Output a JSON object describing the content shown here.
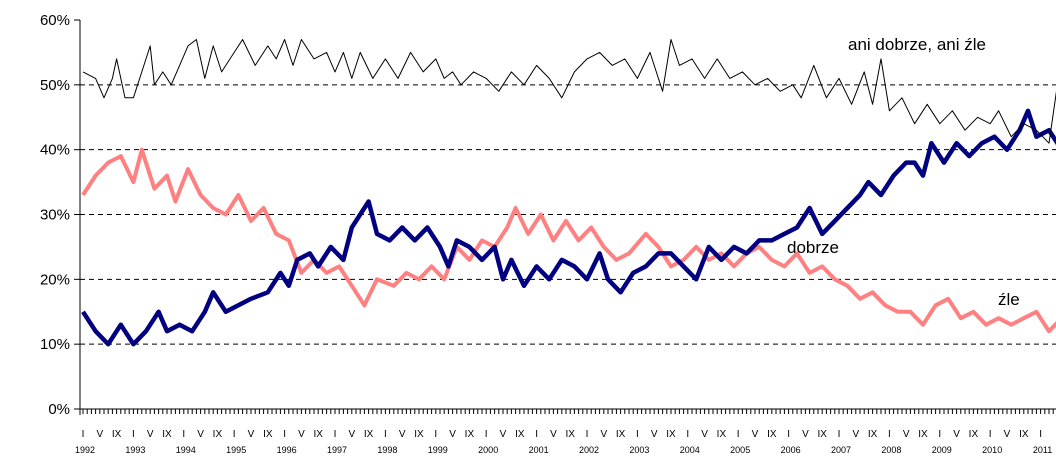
{
  "chart_data": {
    "type": "line",
    "title": "",
    "xlabel": "",
    "ylabel": "",
    "ylim": [
      0,
      60
    ],
    "y_ticks": [
      0,
      10,
      20,
      30,
      40,
      50,
      60
    ],
    "y_tick_labels": [
      "0%",
      "10%",
      "20%",
      "30%",
      "40%",
      "50%",
      "60%"
    ],
    "grid": "horizontal dashed at 10–50%",
    "x_range": [
      "1992-01",
      "2011-12"
    ],
    "x_month_tick_labels": [
      "I",
      "V",
      "IX"
    ],
    "x_year_labels": [
      "1992",
      "1993",
      "1994",
      "1995",
      "1996",
      "1997",
      "1998",
      "1999",
      "2000",
      "2001",
      "2002",
      "2003",
      "2004",
      "2005",
      "2006",
      "2007",
      "2008",
      "2009",
      "2010",
      "2011"
    ],
    "series": [
      {
        "name": "ani dobrze, ani źle",
        "color": "#000000",
        "points": [
          [
            "1992-01",
            52
          ],
          [
            "1992-04",
            51
          ],
          [
            "1992-06",
            48
          ],
          [
            "1992-08",
            51
          ],
          [
            "1992-09",
            54
          ],
          [
            "1992-11",
            48
          ],
          [
            "1993-01",
            48
          ],
          [
            "1993-03",
            52
          ],
          [
            "1993-05",
            56
          ],
          [
            "1993-06",
            50
          ],
          [
            "1993-08",
            52
          ],
          [
            "1993-10",
            50
          ],
          [
            "1993-12",
            53
          ],
          [
            "1994-02",
            56
          ],
          [
            "1994-04",
            57
          ],
          [
            "1994-06",
            51
          ],
          [
            "1994-08",
            56
          ],
          [
            "1994-10",
            52
          ],
          [
            "1994-12",
            54
          ],
          [
            "1995-03",
            57
          ],
          [
            "1995-06",
            53
          ],
          [
            "1995-09",
            56
          ],
          [
            "1995-11",
            54
          ],
          [
            "1996-01",
            57
          ],
          [
            "1996-03",
            53
          ],
          [
            "1996-05",
            57
          ],
          [
            "1996-08",
            54
          ],
          [
            "1996-11",
            55
          ],
          [
            "1997-01",
            52
          ],
          [
            "1997-03",
            55
          ],
          [
            "1997-05",
            51
          ],
          [
            "1997-07",
            55
          ],
          [
            "1997-10",
            51
          ],
          [
            "1998-01",
            54
          ],
          [
            "1998-04",
            51
          ],
          [
            "1998-07",
            55
          ],
          [
            "1998-10",
            52
          ],
          [
            "1999-01",
            54
          ],
          [
            "1999-03",
            51
          ],
          [
            "1999-05",
            52
          ],
          [
            "1999-07",
            50
          ],
          [
            "1999-10",
            52
          ],
          [
            "2000-01",
            51
          ],
          [
            "2000-04",
            49
          ],
          [
            "2000-07",
            52
          ],
          [
            "2000-10",
            50
          ],
          [
            "2001-01",
            53
          ],
          [
            "2001-04",
            51
          ],
          [
            "2001-07",
            48
          ],
          [
            "2001-10",
            52
          ],
          [
            "2002-01",
            54
          ],
          [
            "2002-04",
            55
          ],
          [
            "2002-07",
            53
          ],
          [
            "2002-10",
            54
          ],
          [
            "2003-01",
            51
          ],
          [
            "2003-04",
            55
          ],
          [
            "2003-07",
            49
          ],
          [
            "2003-09",
            57
          ],
          [
            "2003-11",
            53
          ],
          [
            "2004-02",
            54
          ],
          [
            "2004-05",
            51
          ],
          [
            "2004-08",
            54
          ],
          [
            "2004-11",
            51
          ],
          [
            "2005-02",
            52
          ],
          [
            "2005-05",
            50
          ],
          [
            "2005-08",
            51
          ],
          [
            "2005-11",
            49
          ],
          [
            "2006-02",
            50
          ],
          [
            "2006-04",
            48
          ],
          [
            "2006-07",
            53
          ],
          [
            "2006-10",
            48
          ],
          [
            "2007-01",
            51
          ],
          [
            "2007-04",
            47
          ],
          [
            "2007-07",
            52
          ],
          [
            "2007-09",
            47
          ],
          [
            "2007-11",
            54
          ],
          [
            "2008-01",
            46
          ],
          [
            "2008-04",
            48
          ],
          [
            "2008-07",
            44
          ],
          [
            "2008-10",
            47
          ],
          [
            "2009-01",
            44
          ],
          [
            "2009-04",
            46
          ],
          [
            "2009-07",
            43
          ],
          [
            "2009-10",
            45
          ],
          [
            "2010-01",
            44
          ],
          [
            "2010-03",
            46
          ],
          [
            "2010-06",
            42
          ],
          [
            "2010-09",
            44
          ],
          [
            "2010-12",
            43
          ],
          [
            "2011-03",
            41
          ],
          [
            "2011-05",
            50
          ],
          [
            "2011-07",
            42
          ],
          [
            "2011-09",
            51
          ],
          [
            "2011-12",
            43
          ]
        ]
      },
      {
        "name": "dobrze",
        "color": "#000080",
        "points": [
          [
            "1992-01",
            15
          ],
          [
            "1992-04",
            12
          ],
          [
            "1992-07",
            10
          ],
          [
            "1992-10",
            13
          ],
          [
            "1993-01",
            10
          ],
          [
            "1993-04",
            12
          ],
          [
            "1993-07",
            15
          ],
          [
            "1993-09",
            12
          ],
          [
            "1993-12",
            13
          ],
          [
            "1994-03",
            12
          ],
          [
            "1994-06",
            15
          ],
          [
            "1994-08",
            18
          ],
          [
            "1994-11",
            15
          ],
          [
            "1995-02",
            16
          ],
          [
            "1995-05",
            17
          ],
          [
            "1995-09",
            18
          ],
          [
            "1995-12",
            21
          ],
          [
            "1996-02",
            19
          ],
          [
            "1996-04",
            23
          ],
          [
            "1996-07",
            24
          ],
          [
            "1996-09",
            22
          ],
          [
            "1996-12",
            25
          ],
          [
            "1997-03",
            23
          ],
          [
            "1997-05",
            28
          ],
          [
            "1997-07",
            30
          ],
          [
            "1997-09",
            32
          ],
          [
            "1997-11",
            27
          ],
          [
            "1998-02",
            26
          ],
          [
            "1998-05",
            28
          ],
          [
            "1998-08",
            26
          ],
          [
            "1998-11",
            28
          ],
          [
            "1999-02",
            25
          ],
          [
            "1999-04",
            22
          ],
          [
            "1999-06",
            26
          ],
          [
            "1999-09",
            25
          ],
          [
            "1999-12",
            23
          ],
          [
            "2000-03",
            25
          ],
          [
            "2000-05",
            20
          ],
          [
            "2000-07",
            23
          ],
          [
            "2000-10",
            19
          ],
          [
            "2001-01",
            22
          ],
          [
            "2001-04",
            20
          ],
          [
            "2001-07",
            23
          ],
          [
            "2001-10",
            22
          ],
          [
            "2002-01",
            20
          ],
          [
            "2002-04",
            24
          ],
          [
            "2002-06",
            20
          ],
          [
            "2002-09",
            18
          ],
          [
            "2002-12",
            21
          ],
          [
            "2003-03",
            22
          ],
          [
            "2003-06",
            24
          ],
          [
            "2003-09",
            24
          ],
          [
            "2003-12",
            22
          ],
          [
            "2004-03",
            20
          ],
          [
            "2004-06",
            25
          ],
          [
            "2004-09",
            23
          ],
          [
            "2004-12",
            25
          ],
          [
            "2005-03",
            24
          ],
          [
            "2005-06",
            26
          ],
          [
            "2005-09",
            26
          ],
          [
            "2005-12",
            27
          ],
          [
            "2006-03",
            28
          ],
          [
            "2006-06",
            31
          ],
          [
            "2006-09",
            27
          ],
          [
            "2006-12",
            29
          ],
          [
            "2007-03",
            31
          ],
          [
            "2007-06",
            33
          ],
          [
            "2007-08",
            35
          ],
          [
            "2007-11",
            33
          ],
          [
            "2008-02",
            36
          ],
          [
            "2008-05",
            38
          ],
          [
            "2008-07",
            38
          ],
          [
            "2008-09",
            36
          ],
          [
            "2008-11",
            41
          ],
          [
            "2009-02",
            38
          ],
          [
            "2009-05",
            41
          ],
          [
            "2009-08",
            39
          ],
          [
            "2009-11",
            41
          ],
          [
            "2010-02",
            42
          ],
          [
            "2010-05",
            40
          ],
          [
            "2010-08",
            43
          ],
          [
            "2010-10",
            46
          ],
          [
            "2010-12",
            42
          ],
          [
            "2011-03",
            43
          ],
          [
            "2011-06",
            40
          ],
          [
            "2011-08",
            44
          ],
          [
            "2011-10",
            36
          ],
          [
            "2011-12",
            40
          ]
        ]
      },
      {
        "name": "źle",
        "color": "#ff8080",
        "points": [
          [
            "1992-01",
            33
          ],
          [
            "1992-04",
            36
          ],
          [
            "1992-07",
            38
          ],
          [
            "1992-10",
            39
          ],
          [
            "1993-01",
            35
          ],
          [
            "1993-03",
            40
          ],
          [
            "1993-06",
            34
          ],
          [
            "1993-09",
            36
          ],
          [
            "1993-11",
            32
          ],
          [
            "1994-02",
            37
          ],
          [
            "1994-05",
            33
          ],
          [
            "1994-08",
            31
          ],
          [
            "1994-11",
            30
          ],
          [
            "1995-02",
            33
          ],
          [
            "1995-05",
            29
          ],
          [
            "1995-08",
            31
          ],
          [
            "1995-11",
            27
          ],
          [
            "1996-02",
            26
          ],
          [
            "1996-05",
            21
          ],
          [
            "1996-08",
            23
          ],
          [
            "1996-11",
            21
          ],
          [
            "1997-02",
            22
          ],
          [
            "1997-05",
            19
          ],
          [
            "1997-08",
            16
          ],
          [
            "1997-11",
            20
          ],
          [
            "1998-03",
            19
          ],
          [
            "1998-06",
            21
          ],
          [
            "1998-09",
            20
          ],
          [
            "1998-12",
            22
          ],
          [
            "1999-03",
            20
          ],
          [
            "1999-06",
            25
          ],
          [
            "1999-09",
            23
          ],
          [
            "1999-12",
            26
          ],
          [
            "2000-03",
            25
          ],
          [
            "2000-06",
            28
          ],
          [
            "2000-08",
            31
          ],
          [
            "2000-11",
            27
          ],
          [
            "2001-02",
            30
          ],
          [
            "2001-05",
            26
          ],
          [
            "2001-08",
            29
          ],
          [
            "2001-11",
            26
          ],
          [
            "2002-02",
            28
          ],
          [
            "2002-05",
            25
          ],
          [
            "2002-08",
            23
          ],
          [
            "2002-11",
            24
          ],
          [
            "2003-03",
            27
          ],
          [
            "2003-06",
            25
          ],
          [
            "2003-09",
            22
          ],
          [
            "2003-12",
            23
          ],
          [
            "2004-03",
            25
          ],
          [
            "2004-06",
            23
          ],
          [
            "2004-09",
            24
          ],
          [
            "2004-12",
            22
          ],
          [
            "2005-03",
            24
          ],
          [
            "2005-06",
            25
          ],
          [
            "2005-09",
            23
          ],
          [
            "2005-12",
            22
          ],
          [
            "2006-03",
            24
          ],
          [
            "2006-06",
            21
          ],
          [
            "2006-09",
            22
          ],
          [
            "2006-12",
            20
          ],
          [
            "2007-03",
            19
          ],
          [
            "2007-06",
            17
          ],
          [
            "2007-09",
            18
          ],
          [
            "2007-12",
            16
          ],
          [
            "2008-03",
            15
          ],
          [
            "2008-06",
            15
          ],
          [
            "2008-09",
            13
          ],
          [
            "2008-12",
            16
          ],
          [
            "2009-03",
            17
          ],
          [
            "2009-06",
            14
          ],
          [
            "2009-09",
            15
          ],
          [
            "2009-12",
            13
          ],
          [
            "2010-03",
            14
          ],
          [
            "2010-06",
            13
          ],
          [
            "2010-09",
            14
          ],
          [
            "2010-12",
            15
          ],
          [
            "2011-03",
            12
          ],
          [
            "2011-06",
            14
          ],
          [
            "2011-09",
            13
          ],
          [
            "2011-12",
            14
          ]
        ]
      }
    ],
    "annotations": [
      {
        "text": "ani dobrze, ani źle",
        "series": "ani dobrze, ani źle"
      },
      {
        "text": "dobrze",
        "series": "dobrze"
      },
      {
        "text": "źle",
        "series": "źle"
      }
    ]
  }
}
